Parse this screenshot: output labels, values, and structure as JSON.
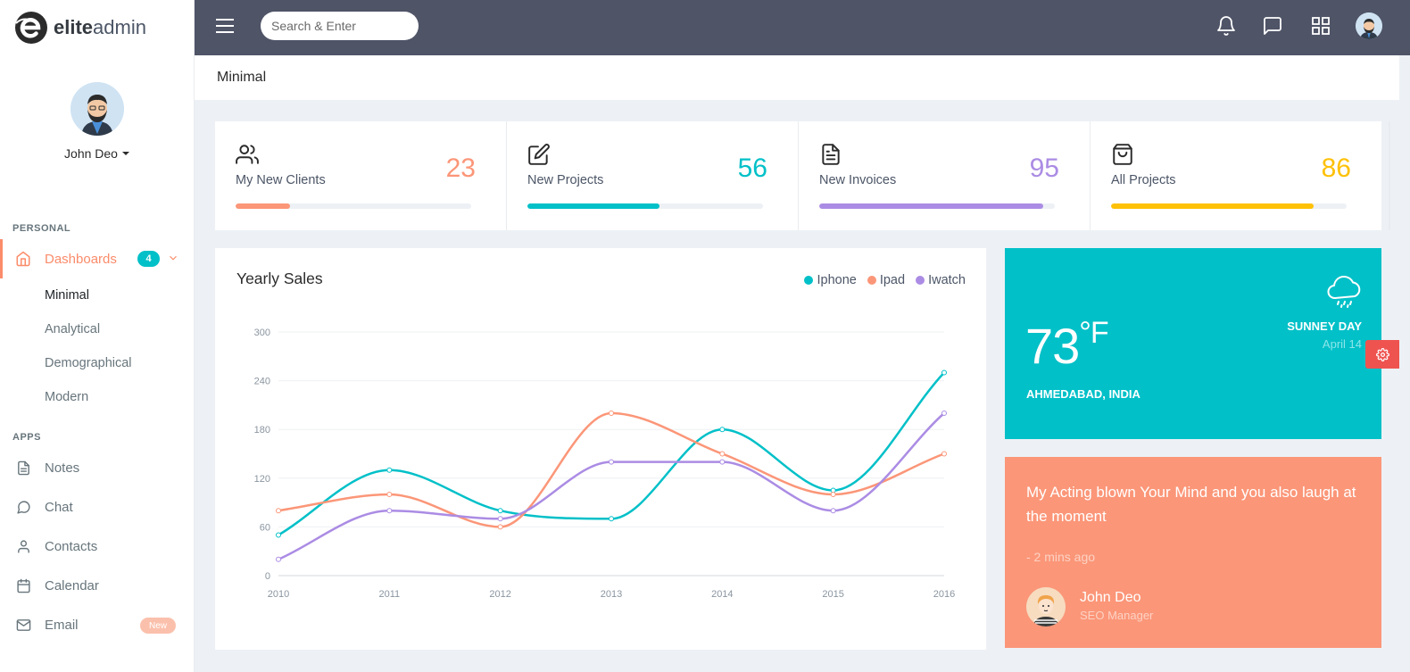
{
  "brand": {
    "bold": "elite",
    "light": "admin"
  },
  "profile": {
    "name": "John Deo"
  },
  "sidebar": {
    "personal_label": "PERSONAL",
    "dashboards": {
      "label": "Dashboards",
      "badge": "4"
    },
    "sub_items": [
      "Minimal",
      "Analytical",
      "Demographical",
      "Modern"
    ],
    "apps_label": "APPS",
    "apps": [
      {
        "label": "Notes",
        "icon": "notes-icon"
      },
      {
        "label": "Chat",
        "icon": "chat-icon"
      },
      {
        "label": "Contacts",
        "icon": "user-icon"
      },
      {
        "label": "Calendar",
        "icon": "calendar-icon"
      },
      {
        "label": "Email",
        "icon": "mail-icon",
        "badge": "New"
      }
    ]
  },
  "topbar": {
    "search_placeholder": "Search & Enter"
  },
  "page": {
    "title": "Minimal"
  },
  "stats": [
    {
      "label": "My New Clients",
      "value": "23",
      "progress": 0.23,
      "color": "#fb9678",
      "icon": "users-icon"
    },
    {
      "label": "New Projects",
      "value": "56",
      "progress": 0.56,
      "color": "#01c0c8",
      "icon": "edit-icon"
    },
    {
      "label": "New Invoices",
      "value": "95",
      "progress": 0.95,
      "color": "#ab8ce4",
      "icon": "file-text-icon"
    },
    {
      "label": "All Projects",
      "value": "86",
      "progress": 0.86,
      "color": "#fec107",
      "icon": "shopping-bag-icon"
    }
  ],
  "chart_data": {
    "type": "line",
    "title": "Yearly Sales",
    "x": [
      "2010",
      "2011",
      "2012",
      "2013",
      "2014",
      "2015",
      "2016"
    ],
    "yticks": [
      "0",
      "60",
      "120",
      "180",
      "240",
      "300"
    ],
    "ylim": [
      0,
      300
    ],
    "legend_position": "top-right",
    "grid": true,
    "series": [
      {
        "name": "Iphone",
        "color": "#01c0c8",
        "values": [
          50,
          130,
          80,
          70,
          180,
          105,
          250
        ]
      },
      {
        "name": "Ipad",
        "color": "#fb9678",
        "values": [
          80,
          100,
          60,
          200,
          150,
          100,
          150
        ]
      },
      {
        "name": "Iwatch",
        "color": "#ab8ce4",
        "values": [
          20,
          80,
          70,
          140,
          140,
          80,
          200
        ]
      }
    ]
  },
  "weather": {
    "temp": "73",
    "unit": "°F",
    "city": "AHMEDABAD, INDIA",
    "day": "SUNNEY DAY",
    "date": "April 14"
  },
  "quote": {
    "text": "My Acting blown Your Mind and you also laugh at the moment",
    "time": "- 2 mins ago",
    "name": "John Deo",
    "role": "SEO Manager"
  }
}
